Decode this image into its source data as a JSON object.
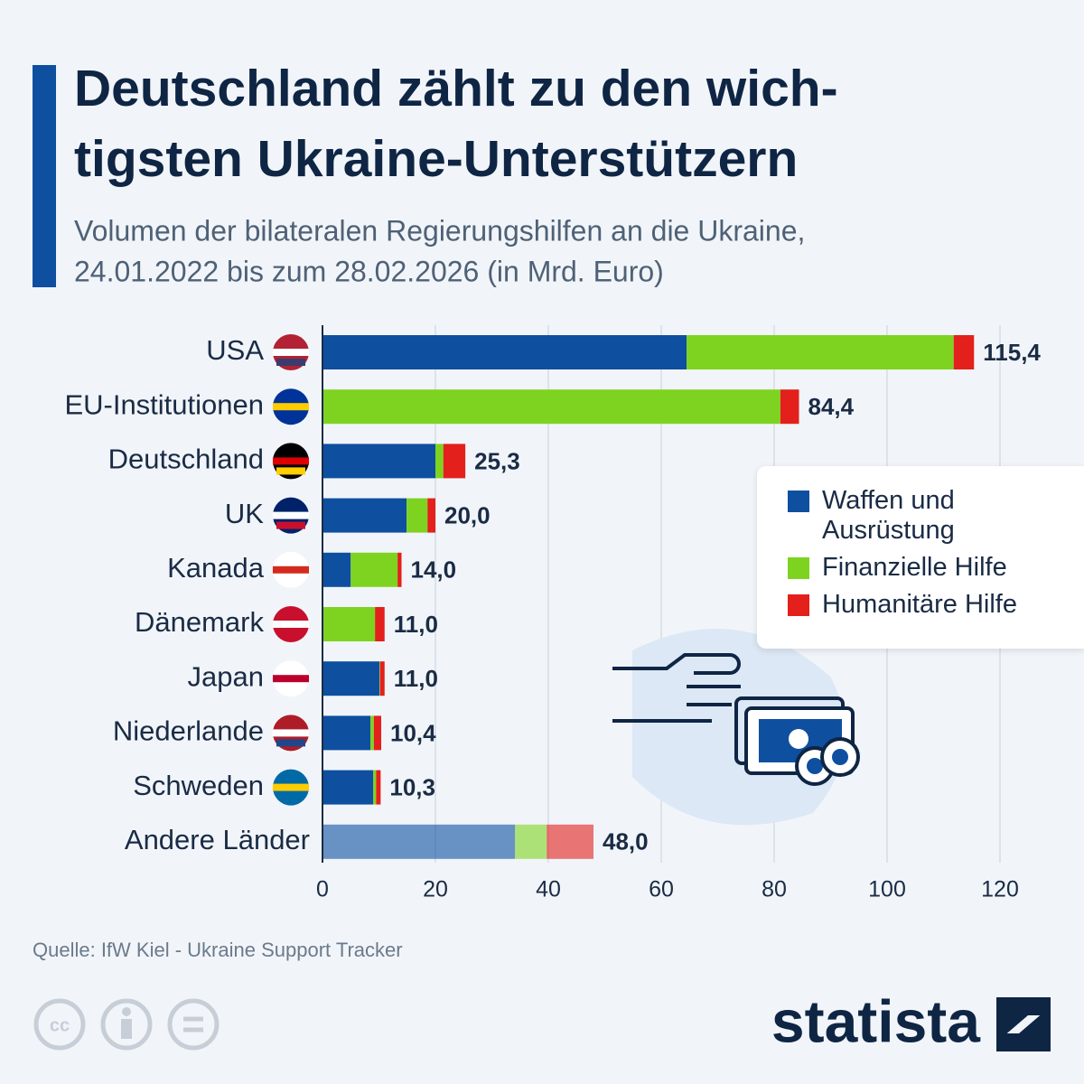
{
  "chart_data": {
    "type": "stacked-bar-horizontal",
    "title": "Deutschland zählt zu den wich-tigsten Ukraine-Unterstützern",
    "subtitle": "Volumen der bilateralen Regierungshilfen an die Ukraine, 24.01.2022 bis zum 28.02.2026 (in Mrd. Euro)",
    "categories": [
      "USA",
      "EU-Institutionen",
      "Deutschland",
      "UK",
      "Kanada",
      "Dänemark",
      "Japan",
      "Niederlande",
      "Schweden",
      "Andere Länder"
    ],
    "series": [
      {
        "name": "Waffen und Ausrüstung",
        "color": "#0e4fa0",
        "values": [
          64.5,
          0,
          20.0,
          14.9,
          5.0,
          0,
          10.1,
          8.5,
          9.0,
          34.1
        ]
      },
      {
        "name": "Finanzielle Hilfe",
        "color": "#7ed321",
        "values": [
          47.3,
          81.1,
          1.4,
          3.7,
          8.3,
          9.3,
          0.1,
          0.6,
          0.5,
          5.6
        ]
      },
      {
        "name": "Humanitäre Hilfe",
        "color": "#e3201b",
        "values": [
          3.6,
          3.3,
          3.9,
          1.4,
          0.7,
          1.7,
          0.8,
          1.3,
          0.8,
          8.3
        ]
      }
    ],
    "totals": [
      115.4,
      84.4,
      25.3,
      20.0,
      14.0,
      11.0,
      11.0,
      10.4,
      10.3,
      48.0
    ],
    "total_labels": [
      "115,4",
      "84,4",
      "25,3",
      "20,0",
      "14,0",
      "11,0",
      "11,0",
      "10,4",
      "10,3",
      "48,0"
    ],
    "xlim": [
      0,
      120
    ],
    "xticks": [
      0,
      20,
      40,
      60,
      80,
      100,
      120
    ],
    "grid": true,
    "source": "Quelle: IfW Kiel - Ukraine Support Tracker",
    "brand": "statista"
  }
}
